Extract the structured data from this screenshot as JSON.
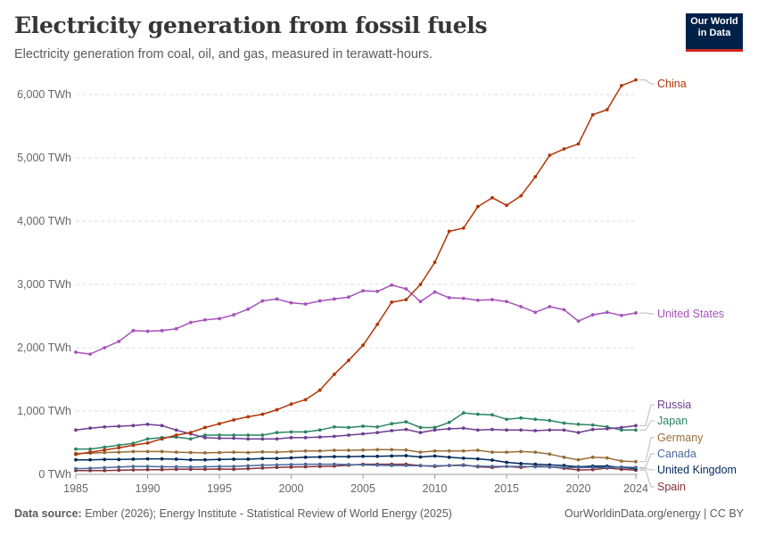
{
  "header": {
    "title": "Electricity generation from fossil fuels",
    "subtitle": "Electricity generation from coal, oil, and gas, measured in terawatt-hours.",
    "logo_line1": "Our World",
    "logo_line2": "in Data"
  },
  "footer": {
    "source_label": "Data source:",
    "source_text": "Ember (2026); Energy Institute - Statistical Review of World Energy (2025)",
    "url_text": "OurWorldinData.org/energy | CC BY"
  },
  "chart_data": {
    "type": "line",
    "x_ticks": [
      1985,
      1990,
      1995,
      2000,
      2005,
      2010,
      2015,
      2020,
      2024
    ],
    "x_tick_labels": [
      "1985",
      "1990",
      "1995",
      "2000",
      "2005",
      "2010",
      "2015",
      "2020",
      "2024"
    ],
    "y_ticks": [
      0,
      1000,
      2000,
      3000,
      4000,
      5000,
      6000
    ],
    "y_tick_labels": [
      "0 TWh",
      "1,000 TWh",
      "2,000 TWh",
      "3,000 TWh",
      "4,000 TWh",
      "5,000 TWh",
      "6,000 TWh"
    ],
    "xlim": [
      1985,
      2025
    ],
    "ylim": [
      0,
      6400
    ],
    "grid": "horizontal dashed",
    "legend": "inline labels at line ends (right)",
    "x": [
      1985,
      1986,
      1987,
      1988,
      1989,
      1990,
      1991,
      1992,
      1993,
      1994,
      1995,
      1996,
      1997,
      1998,
      1999,
      2000,
      2001,
      2002,
      2003,
      2004,
      2005,
      2006,
      2007,
      2008,
      2009,
      2010,
      2011,
      2012,
      2013,
      2014,
      2015,
      2016,
      2017,
      2018,
      2019,
      2020,
      2021,
      2022,
      2023,
      2024
    ],
    "series": [
      {
        "name": "China",
        "color": "#b13507",
        "values": [
          315,
          350,
          385,
          420,
          460,
          495,
          560,
          620,
          660,
          740,
          800,
          860,
          910,
          950,
          1020,
          1110,
          1180,
          1330,
          1580,
          1800,
          2040,
          2370,
          2720,
          2760,
          3000,
          3350,
          3840,
          3890,
          4230,
          4370,
          4250,
          4400,
          4700,
          5040,
          5140,
          5220,
          5680,
          5760,
          6140,
          6230
        ]
      },
      {
        "name": "United States",
        "color": "#a652ba",
        "values": [
          1930,
          1900,
          2000,
          2100,
          2270,
          2260,
          2270,
          2300,
          2400,
          2440,
          2460,
          2520,
          2610,
          2740,
          2770,
          2710,
          2690,
          2740,
          2770,
          2800,
          2900,
          2890,
          2990,
          2930,
          2730,
          2880,
          2790,
          2780,
          2750,
          2760,
          2730,
          2650,
          2560,
          2650,
          2600,
          2420,
          2520,
          2560,
          2510,
          2550
        ]
      },
      {
        "name": "Russia",
        "color": "#6d3e91",
        "values": [
          700,
          730,
          750,
          760,
          770,
          790,
          770,
          700,
          640,
          580,
          570,
          570,
          560,
          560,
          560,
          580,
          580,
          590,
          600,
          620,
          640,
          660,
          690,
          710,
          660,
          700,
          720,
          730,
          700,
          710,
          700,
          700,
          690,
          700,
          700,
          660,
          710,
          720,
          740,
          770
        ]
      },
      {
        "name": "Japan",
        "color": "#2c8465",
        "values": [
          400,
          400,
          430,
          460,
          490,
          560,
          580,
          590,
          560,
          620,
          620,
          620,
          620,
          620,
          660,
          670,
          670,
          700,
          750,
          740,
          760,
          750,
          800,
          830,
          740,
          740,
          820,
          970,
          950,
          940,
          870,
          890,
          870,
          850,
          810,
          790,
          780,
          750,
          700,
          700
        ]
      },
      {
        "name": "Germany",
        "color": "#996d39",
        "values": [
          330,
          335,
          345,
          350,
          360,
          360,
          360,
          350,
          345,
          340,
          345,
          350,
          345,
          355,
          350,
          360,
          370,
          370,
          380,
          380,
          385,
          390,
          390,
          385,
          350,
          370,
          370,
          370,
          380,
          350,
          350,
          360,
          350,
          320,
          270,
          230,
          270,
          260,
          210,
          200
        ]
      },
      {
        "name": "Canada",
        "color": "#4c6a9c",
        "values": [
          90,
          95,
          105,
          115,
          125,
          125,
          120,
          120,
          115,
          120,
          125,
          125,
          135,
          145,
          150,
          155,
          160,
          160,
          160,
          155,
          150,
          145,
          140,
          140,
          135,
          135,
          140,
          140,
          130,
          125,
          125,
          125,
          120,
          115,
          110,
          110,
          110,
          110,
          115,
          110
        ]
      },
      {
        "name": "United Kingdom",
        "color": "#00295b",
        "values": [
          230,
          230,
          235,
          235,
          240,
          245,
          245,
          240,
          230,
          230,
          235,
          240,
          240,
          250,
          250,
          260,
          270,
          275,
          280,
          280,
          285,
          285,
          290,
          295,
          275,
          290,
          270,
          255,
          245,
          225,
          190,
          170,
          160,
          150,
          140,
          120,
          130,
          130,
          110,
          90
        ]
      },
      {
        "name": "Spain",
        "color": "#883039",
        "values": [
          60,
          60,
          60,
          65,
          70,
          75,
          75,
          80,
          80,
          80,
          85,
          80,
          90,
          100,
          110,
          115,
          120,
          125,
          130,
          145,
          160,
          160,
          160,
          160,
          140,
          125,
          140,
          150,
          120,
          110,
          125,
          110,
          130,
          120,
          95,
          70,
          75,
          100,
          80,
          65
        ]
      }
    ]
  }
}
